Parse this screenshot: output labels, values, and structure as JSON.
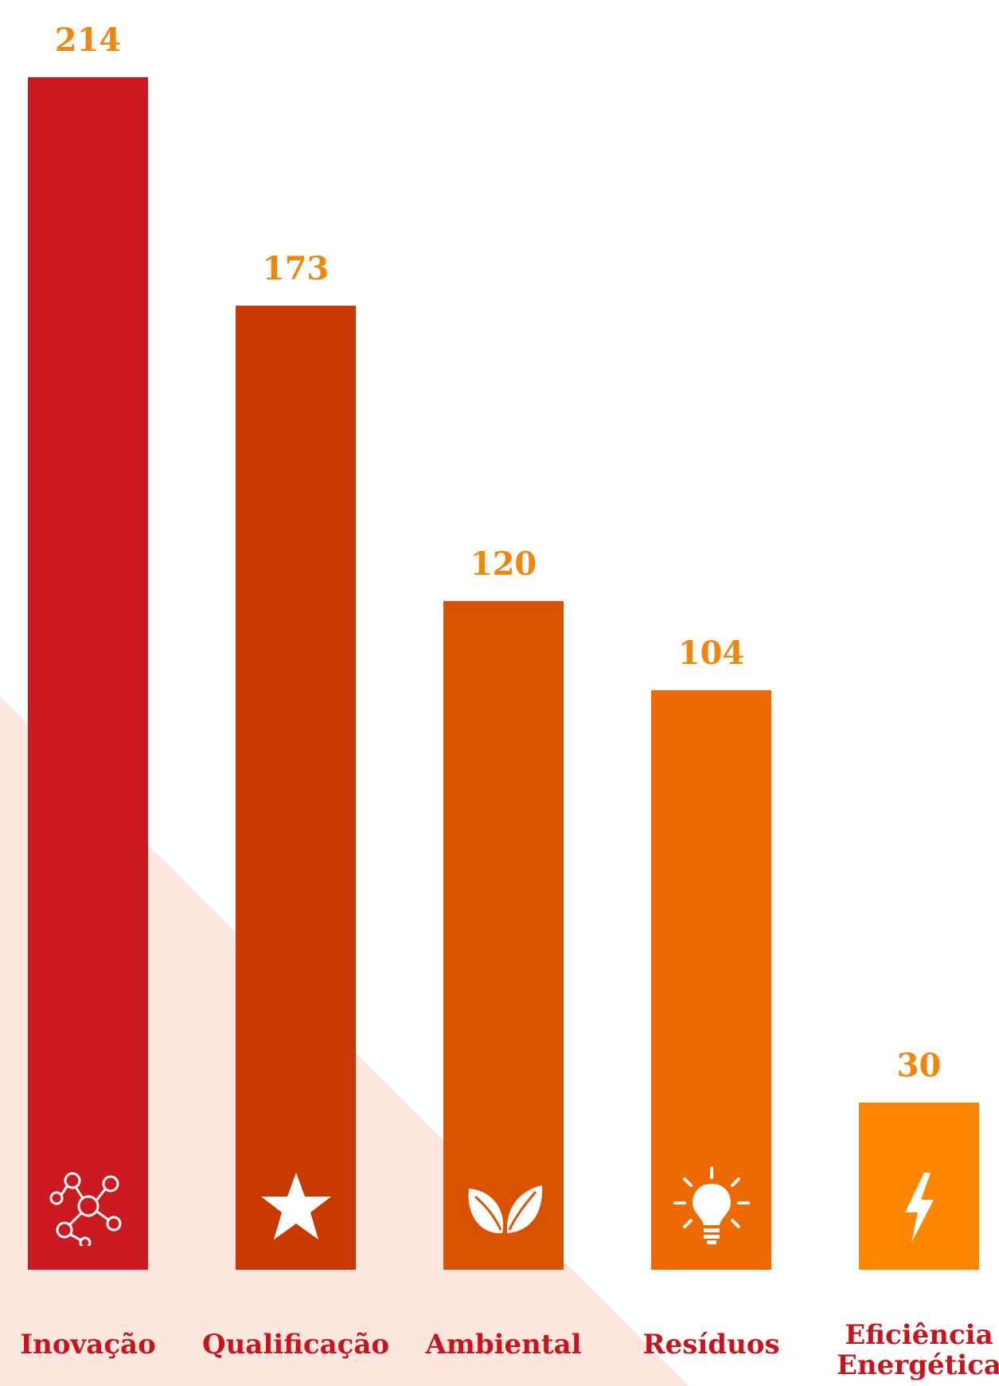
{
  "chart_data": {
    "type": "bar",
    "categories": [
      "Inovação",
      "Qualificação",
      "Ambiental",
      "Resíduos",
      "Eficiência\nEnergética"
    ],
    "values": [
      214,
      173,
      120,
      104,
      30
    ],
    "title": "",
    "xlabel": "",
    "ylabel": "",
    "ylim": [
      0,
      214
    ],
    "grid": false,
    "legend": "none"
  },
  "colors": {
    "bars": [
      "#cc1a22",
      "#c83a00",
      "#d95300",
      "#ec6a00",
      "#fd8600"
    ],
    "value_labels": "#f0860e",
    "category_labels": "#c8141e",
    "background_triangle": "#fde7df",
    "icons": "#ffffff"
  },
  "icons": [
    "network-icon",
    "star-icon",
    "leaf-icon",
    "lightbulb-icon",
    "lightning-icon"
  ]
}
